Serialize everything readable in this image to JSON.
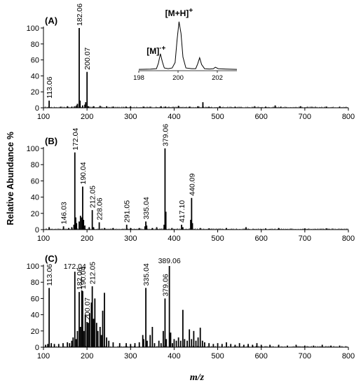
{
  "figure": {
    "ylabel": "Relative Abundance %",
    "xlabel": "m/z"
  },
  "chart_data": [
    {
      "type": "bar",
      "label": "(A)",
      "xlim": [
        100,
        800
      ],
      "ylim": [
        0,
        100
      ],
      "xticks": [
        100,
        200,
        300,
        400,
        500,
        600,
        700,
        800
      ],
      "yticks": [
        0,
        20,
        40,
        60,
        80,
        100
      ],
      "peaks": [
        [
          113.06,
          9
        ],
        [
          140,
          1.5
        ],
        [
          155,
          2
        ],
        [
          165,
          1.5
        ],
        [
          172,
          2
        ],
        [
          176,
          3
        ],
        [
          178,
          5
        ],
        [
          182.06,
          100
        ],
        [
          184,
          9
        ],
        [
          190,
          3
        ],
        [
          195,
          4
        ],
        [
          197,
          7
        ],
        [
          200.07,
          45
        ],
        [
          203,
          2
        ],
        [
          215,
          2
        ],
        [
          230,
          2.5
        ],
        [
          245,
          2
        ],
        [
          260,
          1.5
        ],
        [
          290,
          1.5
        ],
        [
          300,
          2
        ],
        [
          330,
          1.5
        ],
        [
          345,
          1.5
        ],
        [
          370,
          2
        ],
        [
          380,
          1.5
        ],
        [
          410,
          2.5
        ],
        [
          435,
          1.5
        ],
        [
          455,
          2
        ],
        [
          466,
          7
        ],
        [
          480,
          1.5
        ],
        [
          505,
          2
        ],
        [
          540,
          1.5
        ],
        [
          585,
          2
        ],
        [
          610,
          1.5
        ],
        [
          632,
          3
        ],
        [
          645,
          1.5
        ],
        [
          690,
          2
        ],
        [
          750,
          1.5
        ],
        [
          780,
          1.5
        ]
      ],
      "annotations": [
        {
          "x": 113.06,
          "y": 9,
          "text": "113.06"
        },
        {
          "x": 182.06,
          "y": 100,
          "text": "182.06"
        },
        {
          "x": 200.07,
          "y": 45,
          "text": "200.07"
        }
      ],
      "inset": {
        "type": "line",
        "xlim": [
          198,
          203
        ],
        "xticks": [
          198,
          200,
          202
        ],
        "points": [
          [
            198,
            2
          ],
          [
            198.6,
            2.3
          ],
          [
            198.9,
            3
          ],
          [
            199.0,
            11
          ],
          [
            199.1,
            25
          ],
          [
            199.2,
            13
          ],
          [
            199.3,
            4
          ],
          [
            199.5,
            3
          ],
          [
            199.7,
            4
          ],
          [
            199.85,
            12
          ],
          [
            199.95,
            45
          ],
          [
            200.05,
            72
          ],
          [
            200.15,
            55
          ],
          [
            200.25,
            20
          ],
          [
            200.4,
            4
          ],
          [
            200.7,
            3
          ],
          [
            200.9,
            3
          ],
          [
            201.0,
            10
          ],
          [
            201.1,
            19
          ],
          [
            201.2,
            9
          ],
          [
            201.35,
            3
          ],
          [
            201.6,
            2.5
          ],
          [
            201.8,
            3
          ],
          [
            201.9,
            5
          ],
          [
            202.05,
            3
          ],
          [
            202.4,
            2.5
          ],
          [
            203,
            2
          ]
        ],
        "labels": [
          {
            "x": 199.1,
            "text": "[M]",
            "sup": "·+"
          },
          {
            "x": 200.05,
            "text": "[M+H]",
            "sup": "+"
          }
        ]
      }
    },
    {
      "type": "bar",
      "label": "(B)",
      "xlim": [
        100,
        800
      ],
      "ylim": [
        0,
        100
      ],
      "xticks": [
        100,
        200,
        300,
        400,
        500,
        600,
        700,
        800
      ],
      "yticks": [
        0,
        20,
        40,
        60,
        80,
        100
      ],
      "peaks": [
        [
          113,
          3
        ],
        [
          146.03,
          4
        ],
        [
          158,
          2
        ],
        [
          165,
          3
        ],
        [
          170,
          6
        ],
        [
          172.04,
          95
        ],
        [
          174,
          15
        ],
        [
          176,
          8
        ],
        [
          182,
          10
        ],
        [
          185,
          17
        ],
        [
          188,
          15
        ],
        [
          190.04,
          53
        ],
        [
          192,
          12
        ],
        [
          195,
          5
        ],
        [
          205,
          3
        ],
        [
          212.05,
          24
        ],
        [
          215,
          3
        ],
        [
          228.06,
          9
        ],
        [
          240,
          2
        ],
        [
          260,
          2
        ],
        [
          291.05,
          6
        ],
        [
          300,
          2
        ],
        [
          320,
          2
        ],
        [
          333,
          4
        ],
        [
          335.04,
          10
        ],
        [
          337,
          5
        ],
        [
          350,
          2
        ],
        [
          360,
          3
        ],
        [
          377,
          6
        ],
        [
          379.06,
          100
        ],
        [
          381,
          22
        ],
        [
          395,
          2
        ],
        [
          417.1,
          6
        ],
        [
          420,
          3
        ],
        [
          438,
          12
        ],
        [
          440.09,
          39
        ],
        [
          442,
          8
        ],
        [
          460,
          2
        ],
        [
          480,
          1.5
        ],
        [
          520,
          2
        ],
        [
          565,
          3
        ],
        [
          610,
          1.5
        ],
        [
          640,
          2
        ],
        [
          700,
          1.5
        ],
        [
          750,
          1.5
        ]
      ],
      "annotations": [
        {
          "x": 146.03,
          "y": 4,
          "text": "146.03"
        },
        {
          "x": 172.04,
          "y": 95,
          "text": "172.04"
        },
        {
          "x": 190.04,
          "y": 53,
          "text": "190.04"
        },
        {
          "x": 212.05,
          "y": 24,
          "text": "212.05"
        },
        {
          "x": 228.06,
          "y": 9,
          "text": "228.06"
        },
        {
          "x": 291.05,
          "y": 6,
          "text": "291.05"
        },
        {
          "x": 335.04,
          "y": 10,
          "text": "335.04"
        },
        {
          "x": 379.06,
          "y": 100,
          "text": "379.06"
        },
        {
          "x": 417.1,
          "y": 6,
          "text": "417.10"
        },
        {
          "x": 440.09,
          "y": 39,
          "text": "440.09"
        }
      ]
    },
    {
      "type": "bar",
      "label": "(C)",
      "xlim": [
        100,
        800
      ],
      "ylim": [
        0,
        100
      ],
      "xticks": [
        100,
        200,
        300,
        400,
        500,
        600,
        700,
        800
      ],
      "yticks": [
        0,
        20,
        40,
        60,
        80,
        100
      ],
      "peaks": [
        [
          105,
          3
        ],
        [
          110,
          4
        ],
        [
          113.06,
          73
        ],
        [
          118,
          5
        ],
        [
          125,
          4
        ],
        [
          135,
          4
        ],
        [
          145,
          5
        ],
        [
          155,
          6
        ],
        [
          160,
          5
        ],
        [
          165,
          8
        ],
        [
          168,
          12
        ],
        [
          172.04,
          93
        ],
        [
          175,
          10
        ],
        [
          178,
          20
        ],
        [
          182.06,
          68
        ],
        [
          185,
          25
        ],
        [
          188,
          70
        ],
        [
          190.04,
          69
        ],
        [
          193,
          20
        ],
        [
          196,
          40
        ],
        [
          200.07,
          31
        ],
        [
          203,
          30
        ],
        [
          206,
          42
        ],
        [
          210,
          55
        ],
        [
          212.05,
          75
        ],
        [
          215,
          35
        ],
        [
          218,
          60
        ],
        [
          222,
          30
        ],
        [
          225,
          20
        ],
        [
          230,
          25
        ],
        [
          233,
          15
        ],
        [
          236,
          45
        ],
        [
          240,
          67
        ],
        [
          245,
          12
        ],
        [
          250,
          8
        ],
        [
          260,
          6
        ],
        [
          275,
          5
        ],
        [
          290,
          5
        ],
        [
          300,
          4
        ],
        [
          310,
          5
        ],
        [
          320,
          6
        ],
        [
          328,
          15
        ],
        [
          330,
          10
        ],
        [
          335.04,
          73
        ],
        [
          338,
          8
        ],
        [
          345,
          15
        ],
        [
          350,
          25
        ],
        [
          355,
          5
        ],
        [
          365,
          8
        ],
        [
          370,
          5
        ],
        [
          375,
          20
        ],
        [
          379.06,
          60
        ],
        [
          382,
          10
        ],
        [
          389.06,
          100
        ],
        [
          392,
          18
        ],
        [
          396,
          5
        ],
        [
          400,
          10
        ],
        [
          405,
          8
        ],
        [
          410,
          12
        ],
        [
          415,
          8
        ],
        [
          420,
          46
        ],
        [
          424,
          10
        ],
        [
          430,
          8
        ],
        [
          435,
          22
        ],
        [
          440,
          10
        ],
        [
          445,
          20
        ],
        [
          450,
          8
        ],
        [
          455,
          12
        ],
        [
          460,
          24
        ],
        [
          465,
          8
        ],
        [
          470,
          6
        ],
        [
          480,
          5
        ],
        [
          490,
          4
        ],
        [
          500,
          5
        ],
        [
          510,
          4
        ],
        [
          520,
          6
        ],
        [
          530,
          4
        ],
        [
          540,
          3
        ],
        [
          550,
          5
        ],
        [
          560,
          3
        ],
        [
          570,
          4
        ],
        [
          580,
          3
        ],
        [
          590,
          5
        ],
        [
          600,
          3
        ],
        [
          620,
          3
        ],
        [
          640,
          3
        ],
        [
          660,
          2
        ],
        [
          680,
          3
        ],
        [
          700,
          2
        ],
        [
          720,
          2
        ],
        [
          740,
          3
        ],
        [
          760,
          2
        ],
        [
          780,
          2
        ]
      ],
      "annotations": [
        {
          "x": 113.06,
          "y": 73,
          "text": "113.06"
        },
        {
          "x": 172.04,
          "y": 93,
          "text": "172.04",
          "horizontal": true
        },
        {
          "x": 182.06,
          "y": 68,
          "text": "182.06"
        },
        {
          "x": 190.04,
          "y": 69,
          "text": "190.04"
        },
        {
          "x": 200.07,
          "y": 31,
          "text": "200.07"
        },
        {
          "x": 212.05,
          "y": 75,
          "text": "212.05"
        },
        {
          "x": 335.04,
          "y": 73,
          "text": "335.04"
        },
        {
          "x": 379.06,
          "y": 60,
          "text": "379.06"
        },
        {
          "x": 389.06,
          "y": 100,
          "text": "389.06",
          "horizontal": true
        }
      ]
    }
  ]
}
